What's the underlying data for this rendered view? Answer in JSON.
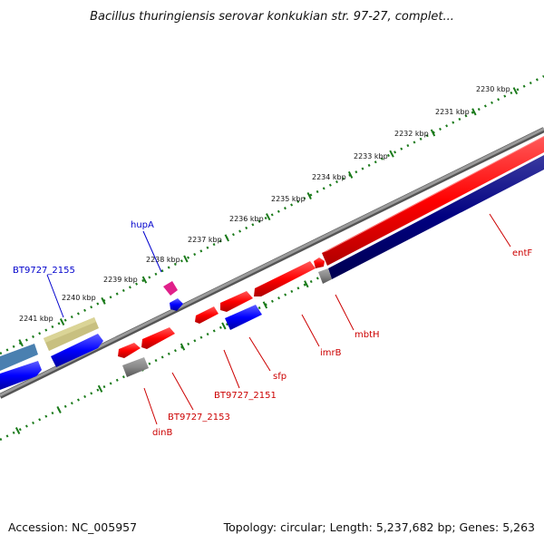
{
  "title": "Bacillus thuringiensis serovar konkukian str. 97-27, complet...",
  "footer": {
    "accession": "Accession: NC_005957",
    "summary": "Topology: circular; Length: 5,237,682 bp; Genes: 5,263"
  },
  "scale_ticks": [
    "2230 kbp",
    "2231 kbp",
    "2232 kbp",
    "2233 kbp",
    "2234 kbp",
    "2235 kbp",
    "2236 kbp",
    "2237 kbp",
    "2238 kbp",
    "2239 kbp",
    "2240 kbp",
    "2241 kbp"
  ],
  "gene_labels": [
    {
      "text": "hupA",
      "color": "#0000cc"
    },
    {
      "text": "BT9727_2155",
      "color": "#0000cc"
    },
    {
      "text": "entF",
      "color": "#cc0000"
    },
    {
      "text": "mbtH",
      "color": "#cc0000"
    },
    {
      "text": "imrB",
      "color": "#cc0000"
    },
    {
      "text": "sfp",
      "color": "#cc0000"
    },
    {
      "text": "BT9727_2151",
      "color": "#cc0000"
    },
    {
      "text": "BT9727_2153",
      "color": "#cc0000"
    },
    {
      "text": "dinB",
      "color": "#cc0000"
    }
  ],
  "colors": {
    "forward_cds": "#ff0000",
    "reverse_cds": "#0000ff",
    "backbone": "#888888",
    "tick_ring": "#1a7a1a",
    "other_gene": "#c8c080"
  }
}
